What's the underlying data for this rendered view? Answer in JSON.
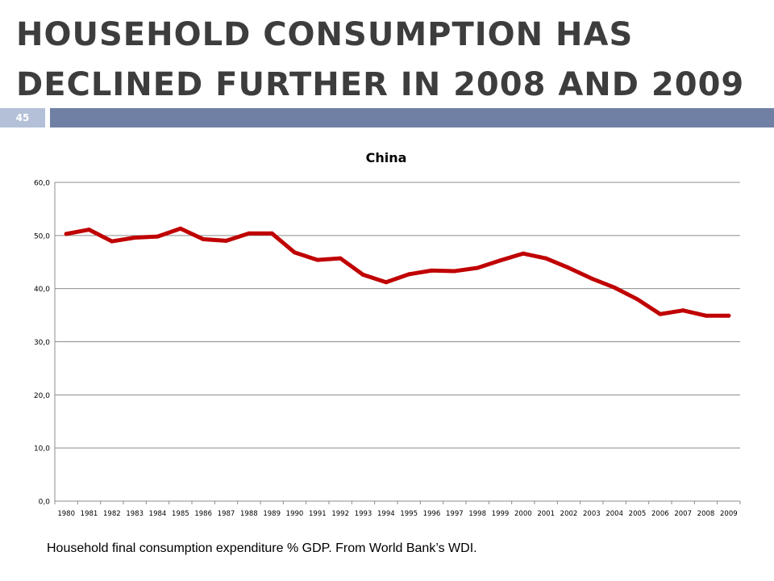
{
  "slide": {
    "title_line1": "HOUSEHOLD CONSUMPTION HAS",
    "title_line2": "DECLINED FURTHER IN 2008 AND 2009",
    "slide_number": "45",
    "caption": "Household final consumption expenditure % GDP. From World Bank’s WDI."
  },
  "colors": {
    "line": "#c00000",
    "title": "#3d3d3d",
    "bar": "#7080a5",
    "slide_number_bg": "#b3c0d8",
    "grid": "#8c8c8c"
  },
  "chart_data": {
    "type": "line",
    "title": "China",
    "xlabel": "",
    "ylabel": "",
    "ylim": [
      0,
      60
    ],
    "yticks": [
      "0,0",
      "10,0",
      "20,0",
      "30,0",
      "40,0",
      "50,0",
      "60,0"
    ],
    "ytick_values": [
      0,
      10,
      20,
      30,
      40,
      50,
      60
    ],
    "grid": true,
    "legend": "none",
    "x": [
      "1980",
      "1981",
      "1982",
      "1983",
      "1984",
      "1985",
      "1986",
      "1987",
      "1988",
      "1989",
      "1990",
      "1991",
      "1992",
      "1993",
      "1994",
      "1995",
      "1996",
      "1997",
      "1998",
      "1999",
      "2000",
      "2001",
      "2002",
      "2003",
      "2004",
      "2005",
      "2006",
      "2007",
      "2008",
      "2009"
    ],
    "series": [
      {
        "values": [
          50.3,
          51.1,
          48.9,
          49.6,
          49.8,
          51.3,
          49.3,
          49.0,
          50.4,
          50.4,
          46.8,
          45.4,
          45.7,
          42.6,
          41.2,
          42.7,
          43.4,
          43.3,
          43.9,
          45.3,
          46.6,
          45.7,
          43.9,
          41.9,
          40.2,
          38.0,
          35.2,
          35.9,
          34.9,
          34.9
        ]
      }
    ]
  }
}
